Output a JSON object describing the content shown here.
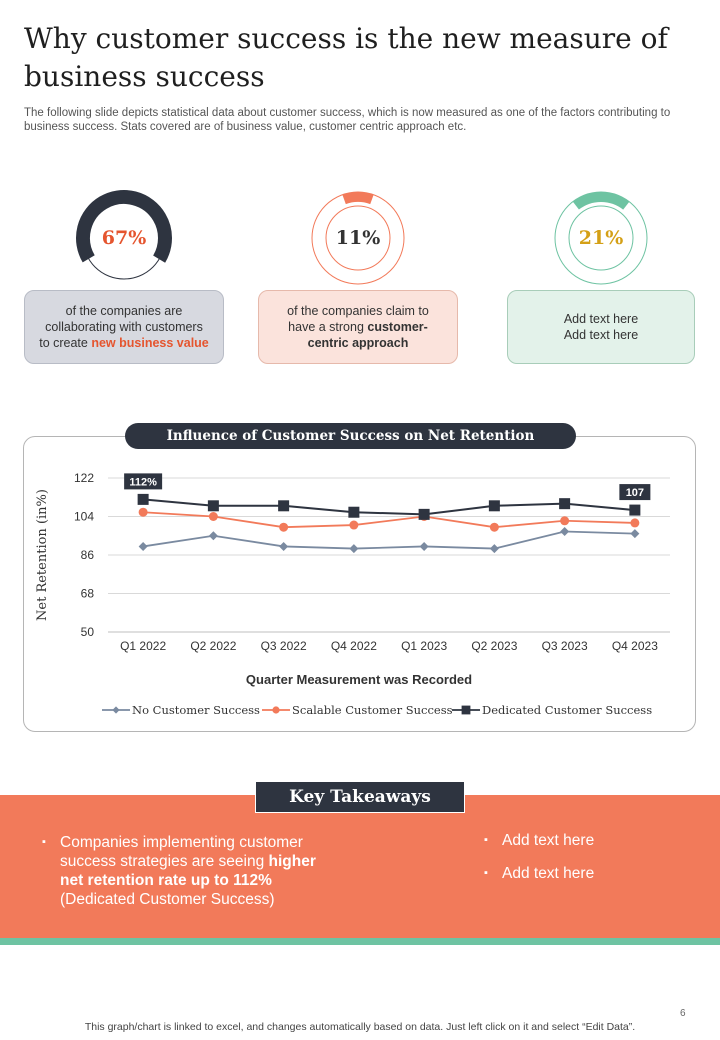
{
  "title": "Why customer success is the new measure of business success",
  "subtitle": "The following slide depicts statistical data about customer success, which is now measured as one of the factors contributing to business success. Stats covered are of business value, customer centric approach etc.",
  "stats": [
    {
      "value": "67%",
      "fraction": 0.67,
      "color": "#2e3440",
      "text_color": "#e5552f",
      "card": {
        "text_before": "of the companies are collaborating with customers to create ",
        "highlight": "new business  value"
      }
    },
    {
      "value": "11%",
      "fraction": 0.11,
      "color": "#f27a5a",
      "text_color": "#333333",
      "card": {
        "text_before": "of the companies claim to have a strong ",
        "highlight": "customer-centric approach"
      }
    },
    {
      "value": "21%",
      "fraction": 0.21,
      "color": "#6ec3a2",
      "text_color": "#d4a017",
      "card": {
        "line1": "Add text here",
        "line2": "Add text here"
      }
    }
  ],
  "chart_title": "Influence of Customer Success on Net Retention",
  "chart_data": {
    "type": "line",
    "title": "Influence of Customer Success on Net Retention",
    "xlabel": "Quarter Measurement was Recorded",
    "ylabel": "Net Retention (in%)",
    "ylim": [
      50,
      122
    ],
    "yticks": [
      50,
      68,
      86,
      104,
      122
    ],
    "grid": true,
    "legend": "bottom",
    "categories": [
      "Q1 2022",
      "Q2 2022",
      "Q3 2022",
      "Q4 2022",
      "Q1 2023",
      "Q2 2023",
      "Q3 2023",
      "Q4 2023"
    ],
    "series": [
      {
        "name": "No Customer Success",
        "color": "#7a8aa0",
        "marker": "diamond",
        "values": [
          90,
          95,
          90,
          89,
          90,
          89,
          97,
          96
        ]
      },
      {
        "name": "Scalable Customer Success",
        "color": "#f27a5a",
        "marker": "circle",
        "values": [
          106,
          104,
          99,
          100,
          104,
          99,
          102,
          101
        ]
      },
      {
        "name": "Dedicated Customer Success",
        "color": "#2e3440",
        "marker": "square",
        "values": [
          112,
          109,
          109,
          106,
          105,
          109,
          110,
          107
        ]
      }
    ],
    "annotations": [
      {
        "series": 2,
        "index": 0,
        "label": "112%"
      },
      {
        "series": 2,
        "index": 7,
        "label": "107"
      }
    ]
  },
  "takeaways": {
    "title": "Key Takeaways",
    "left": {
      "text_before": "Companies implementing customer success strategies are seeing ",
      "bold": "higher net retention rate up to 112%",
      "text_after": " (Dedicated Customer Success)"
    },
    "right": [
      "Add text here",
      "Add text here"
    ]
  },
  "page_number": "6",
  "footer": "This graph/chart is linked to excel, and changes automatically based on data. Just left click on it and select “Edit Data”."
}
